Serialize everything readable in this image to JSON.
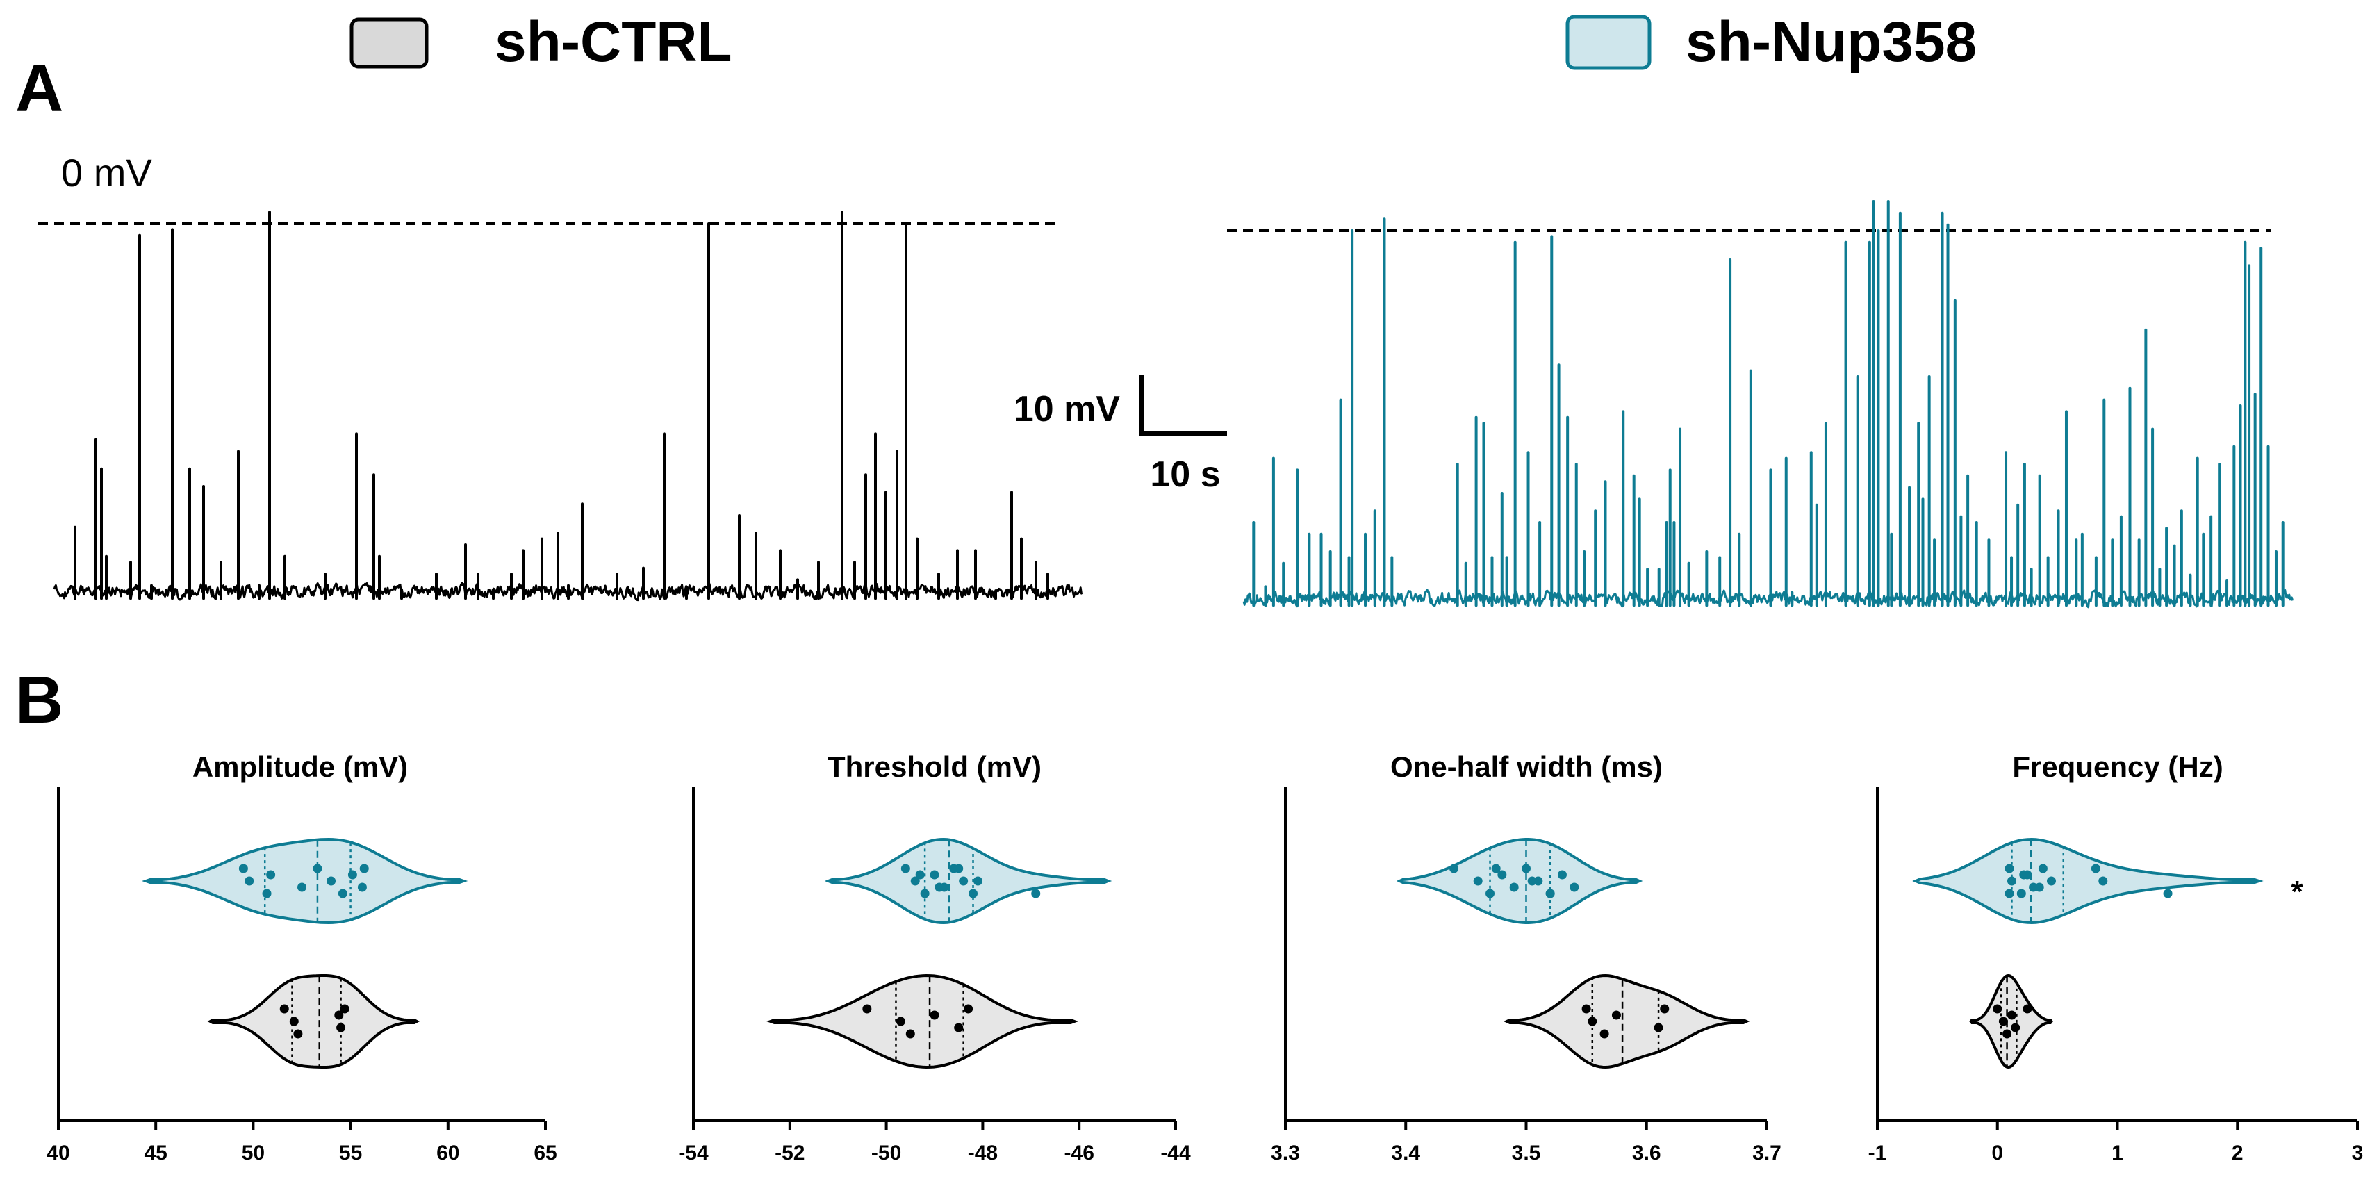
{
  "legend": {
    "items": [
      {
        "label": "sh-CTRL",
        "fill": "#d9d9d9",
        "stroke": "#000000"
      },
      {
        "label": "sh-Nup358",
        "fill": "#cfe6ec",
        "stroke": "#0e7c93"
      }
    ]
  },
  "panels": {
    "a": "A",
    "b": "B"
  },
  "colors": {
    "ctrl_line": "#000000",
    "ctrl_fill": "#e6e6e6",
    "nup_line": "#0e7c93",
    "nup_fill": "#cfe6ec"
  },
  "traces": {
    "zero_label": "0 mV",
    "scalebar": {
      "v_label": "10 mV",
      "t_label": "10 s",
      "v_value": 10,
      "t_value": 10
    },
    "ctrl_spikes": [
      {
        "t": 3,
        "v": -52
      },
      {
        "t": 6,
        "v": -37
      },
      {
        "t": 6.8,
        "v": -42
      },
      {
        "t": 7.5,
        "v": -57
      },
      {
        "t": 11,
        "v": -58
      },
      {
        "t": 12.3,
        "v": -2
      },
      {
        "t": 14,
        "v": -62
      },
      {
        "t": 17,
        "v": -1
      },
      {
        "t": 19.5,
        "v": -42
      },
      {
        "t": 21.5,
        "v": -45
      },
      {
        "t": 24,
        "v": -58
      },
      {
        "t": 26.5,
        "v": -39
      },
      {
        "t": 29.5,
        "v": -62
      },
      {
        "t": 31,
        "v": 2
      },
      {
        "t": 33.2,
        "v": -57
      },
      {
        "t": 39,
        "v": -60
      },
      {
        "t": 43.5,
        "v": -36
      },
      {
        "t": 46,
        "v": -43
      },
      {
        "t": 46.8,
        "v": -57
      },
      {
        "t": 50,
        "v": -63
      },
      {
        "t": 55,
        "v": -60
      },
      {
        "t": 59.2,
        "v": -55
      },
      {
        "t": 61,
        "v": -60
      },
      {
        "t": 63.2,
        "v": -63
      },
      {
        "t": 65.8,
        "v": -60
      },
      {
        "t": 67.5,
        "v": -56
      },
      {
        "t": 70.2,
        "v": -54
      },
      {
        "t": 72.5,
        "v": -53
      },
      {
        "t": 74,
        "v": -62
      },
      {
        "t": 76,
        "v": -48
      },
      {
        "t": 81,
        "v": -60
      },
      {
        "t": 84.8,
        "v": -59
      },
      {
        "t": 87.8,
        "v": -36
      },
      {
        "t": 91,
        "v": -63
      },
      {
        "t": 94.2,
        "v": 0
      },
      {
        "t": 98.6,
        "v": -50
      },
      {
        "t": 101,
        "v": -53
      },
      {
        "t": 104.5,
        "v": -56
      },
      {
        "t": 107,
        "v": -61
      },
      {
        "t": 110,
        "v": -58
      },
      {
        "t": 113.4,
        "v": 2
      },
      {
        "t": 115.2,
        "v": -58
      },
      {
        "t": 116.8,
        "v": -43
      },
      {
        "t": 118.2,
        "v": -36
      },
      {
        "t": 119.7,
        "v": -46
      },
      {
        "t": 121.3,
        "v": -39
      },
      {
        "t": 122.6,
        "v": 0
      },
      {
        "t": 124.2,
        "v": -54
      },
      {
        "t": 127.3,
        "v": -60
      },
      {
        "t": 130,
        "v": -56
      },
      {
        "t": 132.6,
        "v": -56
      },
      {
        "t": 135.5,
        "v": -63
      },
      {
        "t": 137.8,
        "v": -46
      },
      {
        "t": 139.2,
        "v": -54
      },
      {
        "t": 141.3,
        "v": -58
      },
      {
        "t": 143,
        "v": -60
      }
    ],
    "nup_spikes": [
      {
        "t": 2.5,
        "v": -50
      },
      {
        "t": 5.5,
        "v": -61
      },
      {
        "t": 7.5,
        "v": -39
      },
      {
        "t": 10,
        "v": -57
      },
      {
        "t": 13.5,
        "v": -41
      },
      {
        "t": 16.5,
        "v": -52
      },
      {
        "t": 19.5,
        "v": -52
      },
      {
        "t": 21.8,
        "v": -55
      },
      {
        "t": 24.4,
        "v": -29
      },
      {
        "t": 26.5,
        "v": -56
      },
      {
        "t": 27.3,
        "v": 0
      },
      {
        "t": 30.6,
        "v": -52
      },
      {
        "t": 33,
        "v": -48
      },
      {
        "t": 35.4,
        "v": 2
      },
      {
        "t": 37.3,
        "v": -56
      },
      {
        "t": 53.8,
        "v": -40
      },
      {
        "t": 55.9,
        "v": -57
      },
      {
        "t": 58.5,
        "v": -32
      },
      {
        "t": 60.4,
        "v": -33
      },
      {
        "t": 62.5,
        "v": -56
      },
      {
        "t": 65,
        "v": -45
      },
      {
        "t": 66.2,
        "v": -56
      },
      {
        "t": 68.3,
        "v": -2
      },
      {
        "t": 71.6,
        "v": -38
      },
      {
        "t": 74.5,
        "v": -50
      },
      {
        "t": 77.5,
        "v": -1
      },
      {
        "t": 79.3,
        "v": -23
      },
      {
        "t": 81.5,
        "v": -32
      },
      {
        "t": 83.7,
        "v": -40
      },
      {
        "t": 85.7,
        "v": -55
      },
      {
        "t": 88.5,
        "v": -48
      },
      {
        "t": 91,
        "v": -43
      },
      {
        "t": 95.5,
        "v": -31
      },
      {
        "t": 98.2,
        "v": -42
      },
      {
        "t": 99.6,
        "v": -46
      },
      {
        "t": 101.6,
        "v": -58
      },
      {
        "t": 104.5,
        "v": -58
      },
      {
        "t": 106.4,
        "v": -50
      },
      {
        "t": 107.3,
        "v": -41
      },
      {
        "t": 108.3,
        "v": -50
      },
      {
        "t": 109.8,
        "v": -34
      },
      {
        "t": 112,
        "v": -57
      },
      {
        "t": 116.5,
        "v": -55
      },
      {
        "t": 119.8,
        "v": -56
      },
      {
        "t": 122.4,
        "v": -5
      },
      {
        "t": 124.7,
        "v": -52
      },
      {
        "t": 127.6,
        "v": -24
      },
      {
        "t": 132.6,
        "v": -41
      },
      {
        "t": 136.5,
        "v": -39
      },
      {
        "t": 138,
        "v": -62
      },
      {
        "t": 142.8,
        "v": -38
      },
      {
        "t": 144.2,
        "v": -47
      },
      {
        "t": 146.5,
        "v": -33
      },
      {
        "t": 151.5,
        "v": -2
      },
      {
        "t": 154.5,
        "v": -25
      },
      {
        "t": 157.5,
        "v": -2
      },
      {
        "t": 158.5,
        "v": 5
      },
      {
        "t": 159.7,
        "v": 0
      },
      {
        "t": 162.2,
        "v": 5
      },
      {
        "t": 163,
        "v": -52
      },
      {
        "t": 165.2,
        "v": 3
      },
      {
        "t": 167.5,
        "v": -44
      },
      {
        "t": 169.8,
        "v": -33
      },
      {
        "t": 170.9,
        "v": -46
      },
      {
        "t": 172.5,
        "v": -25
      },
      {
        "t": 173.8,
        "v": -53
      },
      {
        "t": 175.8,
        "v": 3
      },
      {
        "t": 177.2,
        "v": 1
      },
      {
        "t": 179,
        "v": -12
      },
      {
        "t": 180.5,
        "v": -49
      },
      {
        "t": 182.2,
        "v": -42
      },
      {
        "t": 184.4,
        "v": -50
      },
      {
        "t": 187.5,
        "v": -53
      },
      {
        "t": 191.8,
        "v": -38
      },
      {
        "t": 193.2,
        "v": -56
      },
      {
        "t": 194.8,
        "v": -47
      },
      {
        "t": 196.5,
        "v": -40
      },
      {
        "t": 198.2,
        "v": -58
      },
      {
        "t": 200.3,
        "v": -42
      },
      {
        "t": 202.4,
        "v": -56
      },
      {
        "t": 205,
        "v": -48
      },
      {
        "t": 207,
        "v": -31
      },
      {
        "t": 209.5,
        "v": -53
      },
      {
        "t": 211,
        "v": -52
      },
      {
        "t": 214.5,
        "v": -56
      },
      {
        "t": 216.5,
        "v": -29
      },
      {
        "t": 218.6,
        "v": -53
      },
      {
        "t": 220.8,
        "v": -49
      },
      {
        "t": 223,
        "v": -27
      },
      {
        "t": 225.3,
        "v": -53
      },
      {
        "t": 227,
        "v": -17
      },
      {
        "t": 228.7,
        "v": -34
      },
      {
        "t": 230.5,
        "v": -58
      },
      {
        "t": 232.2,
        "v": -51
      },
      {
        "t": 234.2,
        "v": -54
      },
      {
        "t": 236,
        "v": -48
      },
      {
        "t": 238.2,
        "v": -59
      },
      {
        "t": 240,
        "v": -39
      },
      {
        "t": 241.5,
        "v": -52
      },
      {
        "t": 243.4,
        "v": -49
      },
      {
        "t": 245.5,
        "v": -40
      },
      {
        "t": 247.4,
        "v": -60
      },
      {
        "t": 249.2,
        "v": -37
      },
      {
        "t": 250.8,
        "v": -30
      },
      {
        "t": 252,
        "v": -2
      },
      {
        "t": 253,
        "v": -6
      },
      {
        "t": 254.5,
        "v": -28
      },
      {
        "t": 256,
        "v": -3
      },
      {
        "t": 257.8,
        "v": -37
      },
      {
        "t": 259.8,
        "v": -55
      },
      {
        "t": 261.5,
        "v": -50
      }
    ]
  },
  "chart_data": [
    {
      "type": "violin",
      "title": "Amplitude (mV)",
      "xlim": [
        40,
        65
      ],
      "ticks": [
        "40",
        "45",
        "50",
        "55",
        "60",
        "65"
      ],
      "series": [
        {
          "name": "sh-Nup358",
          "points": [
            49.5,
            49.8,
            50.7,
            50.9,
            52.5,
            53.3,
            54.0,
            54.6,
            55.1,
            55.6,
            55.7
          ],
          "quartiles": [
            50.6,
            53.3,
            55.0
          ],
          "range": [
            44.5,
            60.8
          ],
          "significance": ""
        },
        {
          "name": "sh-CTRL",
          "points": [
            51.6,
            52.1,
            52.3,
            54.4,
            54.5,
            54.7
          ],
          "quartiles": [
            52.0,
            53.4,
            54.5
          ],
          "range": [
            47.8,
            58.4
          ],
          "significance": ""
        }
      ]
    },
    {
      "type": "violin",
      "title": "Threshold (mV)",
      "xlim": [
        -54,
        -44
      ],
      "ticks": [
        "-54",
        "-52",
        "-50",
        "-48",
        "-46",
        "-44"
      ],
      "series": [
        {
          "name": "sh-Nup358",
          "points": [
            -49.6,
            -49.4,
            -49.2,
            -49.0,
            -48.8,
            -48.6,
            -48.4,
            -48.2,
            -49.3,
            -48.9,
            -48.5,
            -48.1,
            -46.9
          ],
          "quartiles": [
            -49.2,
            -48.7,
            -48.2
          ],
          "range": [
            -51.2,
            -45.4
          ],
          "significance": ""
        },
        {
          "name": "sh-CTRL",
          "points": [
            -50.4,
            -49.7,
            -49.5,
            -49.0,
            -48.5,
            -48.3
          ],
          "quartiles": [
            -49.8,
            -49.1,
            -48.4
          ],
          "range": [
            -52.4,
            -46.1
          ],
          "significance": ""
        }
      ]
    },
    {
      "type": "violin",
      "title": "One-half width (ms)",
      "xlim": [
        3.3,
        3.7
      ],
      "ticks": [
        "3.3",
        "3.4",
        "3.5",
        "3.6",
        "3.7"
      ],
      "series": [
        {
          "name": "sh-Nup358",
          "points": [
            3.44,
            3.46,
            3.47,
            3.48,
            3.49,
            3.5,
            3.51,
            3.52,
            3.53,
            3.54,
            3.475,
            3.505,
            3.52
          ],
          "quartiles": [
            3.47,
            3.5,
            3.52
          ],
          "range": [
            3.395,
            3.594
          ],
          "significance": ""
        },
        {
          "name": "sh-CTRL",
          "points": [
            3.55,
            3.555,
            3.565,
            3.575,
            3.61,
            3.615
          ],
          "quartiles": [
            3.555,
            3.58,
            3.61
          ],
          "range": [
            3.484,
            3.683
          ],
          "significance": ""
        }
      ]
    },
    {
      "type": "violin",
      "title": "Frequency (Hz)",
      "xlim": [
        -1,
        3
      ],
      "ticks": [
        "-1",
        "0",
        "1",
        "2",
        "3"
      ],
      "series": [
        {
          "name": "sh-Nup358",
          "points": [
            0.1,
            0.12,
            0.2,
            0.25,
            0.3,
            0.38,
            0.45,
            0.1,
            0.22,
            0.35,
            0.82,
            0.88,
            1.42
          ],
          "quartiles": [
            0.12,
            0.28,
            0.55
          ],
          "range": [
            -0.68,
            2.18
          ],
          "significance": "*"
        },
        {
          "name": "sh-CTRL",
          "points": [
            0.0,
            0.05,
            0.08,
            0.12,
            0.15,
            0.25
          ],
          "quartiles": [
            0.03,
            0.08,
            0.16
          ],
          "range": [
            -0.22,
            0.45
          ],
          "significance": ""
        }
      ]
    }
  ]
}
